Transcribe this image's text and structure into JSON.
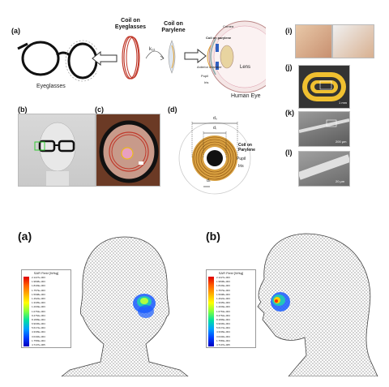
{
  "top": {
    "panel_labels": {
      "a": "(a)",
      "b": "(b)",
      "c": "(c)",
      "d": "(d)",
      "i": "(i)",
      "j": "(j)",
      "k": "(k)",
      "l": "(l)"
    },
    "a_panel": {
      "eyeglasses": "Eyeglasses",
      "coil_on_eyeglasses_line1": "Coil on",
      "coil_on_eyeglasses_line2": "Eyeglasses",
      "coil_on_parylene_line1": "Coil on",
      "coil_on_parylene_line2": "Parylene",
      "k12": "k₁₂",
      "cornea": "Cornea",
      "coil_on_parylene_small": "Coil on parylene",
      "anterior_chamber": "Anterior chamber",
      "pupil": "Pupil",
      "iris": "Iris",
      "lens": "Lens",
      "human_eye": "Human Eye"
    },
    "d_panel": {
      "do": "d₀",
      "di": "dᵢ",
      "ds": "dₛ",
      "coil_line1": "Coil on",
      "coil_line2": "Parylene",
      "pupil": "Pupil",
      "iris": "Iris"
    },
    "scales": {
      "j": "1 mm",
      "k": "200 μm",
      "l": "20 μm"
    }
  },
  "bottom": {
    "panel_a": "(a)",
    "panel_b": "(b)",
    "legend_title": "SAR Field [W/kg]",
    "legend_values_a": [
      "2.1227e-003",
      "1.9838e-003",
      "1.8449e-003",
      "1.7579e-003",
      "1.5908e-003",
      "1.4622e-003",
      "1.3335e-003",
      "1.2049e-003",
      "1.0763e-003",
      "9.4762e-004",
      "8.1899e-004",
      "6.9036e-004",
      "5.6172e-004",
      "4.3309e-004",
      "3.0446e-004",
      "1.7583e-004",
      "4.7197e-005"
    ],
    "legend_values_b": [
      "2.1227e-003",
      "1.9838e-003",
      "1.8449e-003",
      "1.7579e-003",
      "1.5908e-003",
      "1.4622e-003",
      "1.3335e-003",
      "1.2049e-003",
      "1.0763e-003",
      "9.4762e-004",
      "8.1899e-004",
      "6.9036e-004",
      "5.6172e-004",
      "4.3309e-004",
      "3.0446e-004",
      "1.7583e-004",
      "4.7197e-005"
    ]
  }
}
